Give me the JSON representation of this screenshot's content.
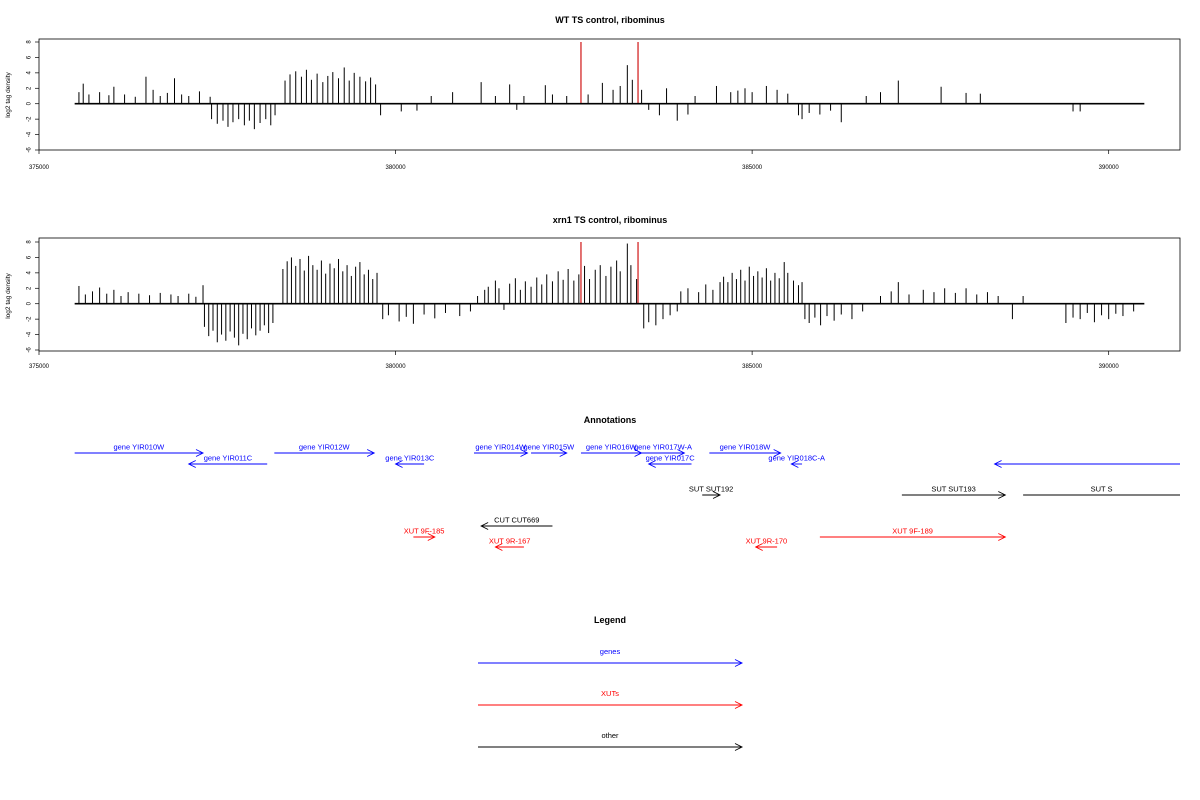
{
  "colors": {
    "gene": "#0000ff",
    "xut": "#ff0000",
    "other": "#000000",
    "marker": "#cc0000",
    "axis": "#000000"
  },
  "chart_data": [
    {
      "type": "bar",
      "title": "WT TS control, ribominus",
      "ylabel": "log2 tag density",
      "xlim": [
        375000,
        391000
      ],
      "ylim": [
        -6,
        8
      ],
      "xticks": [
        375000,
        380000,
        385000,
        390000
      ],
      "yticks": [
        -6,
        -4,
        -2,
        0,
        2,
        4,
        6,
        8
      ],
      "baseline": [
        375500,
        390500
      ],
      "markers": [
        382600,
        383400
      ],
      "bars": [
        [
          375560,
          1.5
        ],
        [
          375620,
          2.6
        ],
        [
          375700,
          1.2
        ],
        [
          375850,
          1.5
        ],
        [
          375980,
          1.1
        ],
        [
          376050,
          2.2
        ],
        [
          376200,
          1.2
        ],
        [
          376350,
          0.9
        ],
        [
          376500,
          3.5
        ],
        [
          376600,
          1.8
        ],
        [
          376700,
          1.0
        ],
        [
          376800,
          1.4
        ],
        [
          376900,
          3.3
        ],
        [
          377000,
          1.2
        ],
        [
          377100,
          1.0
        ],
        [
          377250,
          1.6
        ],
        [
          377400,
          0.9
        ],
        [
          377420,
          -2.0
        ],
        [
          377500,
          -2.6
        ],
        [
          377580,
          -2.2
        ],
        [
          377650,
          -3.0
        ],
        [
          377720,
          -2.4
        ],
        [
          377800,
          -2.0
        ],
        [
          377880,
          -2.8
        ],
        [
          377950,
          -2.2
        ],
        [
          378020,
          -3.3
        ],
        [
          378100,
          -2.5
        ],
        [
          378180,
          -2.0
        ],
        [
          378250,
          -2.8
        ],
        [
          378310,
          -1.5
        ],
        [
          378450,
          3.0
        ],
        [
          378520,
          3.8
        ],
        [
          378600,
          4.2
        ],
        [
          378680,
          3.5
        ],
        [
          378750,
          4.4
        ],
        [
          378820,
          3.1
        ],
        [
          378900,
          3.9
        ],
        [
          378980,
          2.8
        ],
        [
          379050,
          3.6
        ],
        [
          379120,
          4.1
        ],
        [
          379200,
          3.3
        ],
        [
          379280,
          4.7
        ],
        [
          379350,
          3.0
        ],
        [
          379420,
          4.0
        ],
        [
          379500,
          3.5
        ],
        [
          379580,
          2.9
        ],
        [
          379650,
          3.4
        ],
        [
          379720,
          2.5
        ],
        [
          379790,
          -1.5
        ],
        [
          380080,
          -1.0
        ],
        [
          380300,
          -0.9
        ],
        [
          380500,
          1.0
        ],
        [
          380800,
          1.5
        ],
        [
          381200,
          2.8
        ],
        [
          381400,
          1.0
        ],
        [
          381600,
          2.5
        ],
        [
          381700,
          -0.8
        ],
        [
          381800,
          1.0
        ],
        [
          382100,
          2.4
        ],
        [
          382200,
          1.2
        ],
        [
          382400,
          1.0
        ],
        [
          382700,
          1.2
        ],
        [
          382900,
          2.7
        ],
        [
          383050,
          1.8
        ],
        [
          383150,
          2.3
        ],
        [
          383250,
          5.0
        ],
        [
          383320,
          3.1
        ],
        [
          383450,
          1.8
        ],
        [
          383550,
          -0.8
        ],
        [
          383700,
          -1.5
        ],
        [
          383800,
          2.0
        ],
        [
          383950,
          -2.2
        ],
        [
          384100,
          -1.4
        ],
        [
          384200,
          1.0
        ],
        [
          384500,
          2.3
        ],
        [
          384700,
          1.5
        ],
        [
          384800,
          1.7
        ],
        [
          384900,
          2.0
        ],
        [
          385000,
          1.5
        ],
        [
          385200,
          2.3
        ],
        [
          385350,
          1.8
        ],
        [
          385500,
          1.3
        ],
        [
          385650,
          -1.5
        ],
        [
          385700,
          -2.0
        ],
        [
          385800,
          -1.2
        ],
        [
          385950,
          -1.4
        ],
        [
          386100,
          -0.9
        ],
        [
          386250,
          -2.4
        ],
        [
          386600,
          1.0
        ],
        [
          386800,
          1.5
        ],
        [
          387050,
          3.0
        ],
        [
          387650,
          2.2
        ],
        [
          388000,
          1.4
        ],
        [
          388200,
          1.3
        ],
        [
          389500,
          -1.0
        ],
        [
          389600,
          -1.0
        ]
      ]
    },
    {
      "type": "bar",
      "title": "xrn1 TS control, ribominus",
      "ylabel": "log2 tag density",
      "xlim": [
        375000,
        391000
      ],
      "ylim": [
        -6,
        8
      ],
      "xticks": [
        375000,
        380000,
        385000,
        390000
      ],
      "yticks": [
        -6,
        -4,
        -2,
        0,
        2,
        4,
        6,
        8
      ],
      "baseline": [
        375500,
        390500
      ],
      "markers": [
        382600,
        383400
      ],
      "bars": [
        [
          375560,
          2.3
        ],
        [
          375650,
          1.2
        ],
        [
          375750,
          1.6
        ],
        [
          375850,
          2.1
        ],
        [
          375950,
          1.3
        ],
        [
          376050,
          1.8
        ],
        [
          376150,
          1.0
        ],
        [
          376250,
          1.5
        ],
        [
          376400,
          1.3
        ],
        [
          376550,
          1.1
        ],
        [
          376700,
          1.4
        ],
        [
          376850,
          1.2
        ],
        [
          376950,
          1.0
        ],
        [
          377100,
          1.3
        ],
        [
          377200,
          0.9
        ],
        [
          377300,
          2.4
        ],
        [
          377320,
          -3.0
        ],
        [
          377380,
          -4.2
        ],
        [
          377440,
          -3.5
        ],
        [
          377500,
          -5.0
        ],
        [
          377560,
          -4.0
        ],
        [
          377620,
          -4.8
        ],
        [
          377680,
          -3.6
        ],
        [
          377740,
          -4.4
        ],
        [
          377800,
          -5.4
        ],
        [
          377860,
          -3.9
        ],
        [
          377920,
          -4.6
        ],
        [
          377980,
          -3.2
        ],
        [
          378040,
          -4.1
        ],
        [
          378100,
          -3.5
        ],
        [
          378160,
          -2.8
        ],
        [
          378220,
          -3.8
        ],
        [
          378280,
          -2.5
        ],
        [
          378420,
          4.5
        ],
        [
          378480,
          5.5
        ],
        [
          378540,
          6.0
        ],
        [
          378600,
          4.9
        ],
        [
          378660,
          5.8
        ],
        [
          378720,
          4.3
        ],
        [
          378780,
          6.2
        ],
        [
          378840,
          5.0
        ],
        [
          378900,
          4.4
        ],
        [
          378960,
          5.6
        ],
        [
          379020,
          3.9
        ],
        [
          379080,
          5.2
        ],
        [
          379140,
          4.6
        ],
        [
          379200,
          5.8
        ],
        [
          379260,
          4.2
        ],
        [
          379320,
          5.0
        ],
        [
          379380,
          3.6
        ],
        [
          379440,
          4.8
        ],
        [
          379500,
          5.4
        ],
        [
          379560,
          3.8
        ],
        [
          379620,
          4.4
        ],
        [
          379680,
          3.2
        ],
        [
          379740,
          4.0
        ],
        [
          379820,
          -2.0
        ],
        [
          379900,
          -1.5
        ],
        [
          380050,
          -2.3
        ],
        [
          380150,
          -1.7
        ],
        [
          380250,
          -2.6
        ],
        [
          380400,
          -1.4
        ],
        [
          380550,
          -1.9
        ],
        [
          380700,
          -1.2
        ],
        [
          380900,
          -1.6
        ],
        [
          381050,
          -1.0
        ],
        [
          381150,
          1.0
        ],
        [
          381250,
          1.8
        ],
        [
          381300,
          2.2
        ],
        [
          381400,
          3.0
        ],
        [
          381450,
          2.0
        ],
        [
          381520,
          -0.8
        ],
        [
          381600,
          2.6
        ],
        [
          381680,
          3.3
        ],
        [
          381750,
          1.8
        ],
        [
          381820,
          2.9
        ],
        [
          381900,
          2.2
        ],
        [
          381980,
          3.4
        ],
        [
          382050,
          2.5
        ],
        [
          382120,
          3.8
        ],
        [
          382200,
          2.9
        ],
        [
          382280,
          4.2
        ],
        [
          382350,
          3.1
        ],
        [
          382420,
          4.5
        ],
        [
          382500,
          3.0
        ],
        [
          382570,
          3.8
        ],
        [
          382650,
          4.9
        ],
        [
          382720,
          3.2
        ],
        [
          382800,
          4.4
        ],
        [
          382870,
          5.0
        ],
        [
          382950,
          3.6
        ],
        [
          383020,
          4.8
        ],
        [
          383100,
          5.6
        ],
        [
          383150,
          4.2
        ],
        [
          383250,
          7.8
        ],
        [
          383300,
          5.0
        ],
        [
          383380,
          3.2
        ],
        [
          383480,
          -3.2
        ],
        [
          383550,
          -2.4
        ],
        [
          383650,
          -2.8
        ],
        [
          383750,
          -2.0
        ],
        [
          383850,
          -1.5
        ],
        [
          383950,
          -1.0
        ],
        [
          384000,
          1.6
        ],
        [
          384100,
          2.0
        ],
        [
          384250,
          1.5
        ],
        [
          384350,
          2.5
        ],
        [
          384450,
          1.8
        ],
        [
          384550,
          2.8
        ],
        [
          384600,
          3.5
        ],
        [
          384660,
          2.8
        ],
        [
          384720,
          4.0
        ],
        [
          384780,
          3.2
        ],
        [
          384840,
          4.4
        ],
        [
          384900,
          3.0
        ],
        [
          384960,
          4.8
        ],
        [
          385020,
          3.6
        ],
        [
          385080,
          4.2
        ],
        [
          385140,
          3.4
        ],
        [
          385200,
          4.6
        ],
        [
          385260,
          3.0
        ],
        [
          385320,
          4.0
        ],
        [
          385380,
          3.3
        ],
        [
          385450,
          5.4
        ],
        [
          385500,
          4.0
        ],
        [
          385580,
          3.0
        ],
        [
          385650,
          2.4
        ],
        [
          385700,
          2.8
        ],
        [
          385740,
          -2.0
        ],
        [
          385800,
          -2.5
        ],
        [
          385880,
          -1.8
        ],
        [
          385960,
          -2.8
        ],
        [
          386050,
          -1.6
        ],
        [
          386150,
          -2.2
        ],
        [
          386250,
          -1.4
        ],
        [
          386400,
          -2.0
        ],
        [
          386550,
          -1.0
        ],
        [
          386800,
          1.0
        ],
        [
          386950,
          1.6
        ],
        [
          387050,
          2.8
        ],
        [
          387200,
          1.2
        ],
        [
          387400,
          1.8
        ],
        [
          387550,
          1.5
        ],
        [
          387700,
          2.0
        ],
        [
          387850,
          1.4
        ],
        [
          388000,
          2.0
        ],
        [
          388150,
          1.2
        ],
        [
          388300,
          1.5
        ],
        [
          388450,
          1.0
        ],
        [
          388650,
          -2.0
        ],
        [
          388800,
          1.0
        ],
        [
          389400,
          -2.5
        ],
        [
          389500,
          -1.8
        ],
        [
          389600,
          -2.0
        ],
        [
          389700,
          -1.2
        ],
        [
          389800,
          -2.4
        ],
        [
          389900,
          -1.5
        ],
        [
          390000,
          -2.0
        ],
        [
          390100,
          -1.3
        ],
        [
          390200,
          -1.6
        ],
        [
          390350,
          -1.0
        ]
      ]
    }
  ],
  "annotations": {
    "title": "Annotations",
    "items": [
      {
        "label": "gene YIR010W",
        "kind": "gene",
        "start": 375500,
        "end": 377300,
        "dir": "right",
        "row": 0
      },
      {
        "label": "gene YIR011C",
        "kind": "gene",
        "start": 377100,
        "end": 378200,
        "dir": "left",
        "row": 1
      },
      {
        "label": "gene YIR012W",
        "kind": "gene",
        "start": 378300,
        "end": 379700,
        "dir": "right",
        "row": 0
      },
      {
        "label": "gene YIR013C",
        "kind": "gene",
        "start": 380000,
        "end": 380400,
        "dir": "left",
        "row": 1
      },
      {
        "label": "gene YIR014W",
        "kind": "gene",
        "start": 381100,
        "end": 381850,
        "dir": "right",
        "row": 0
      },
      {
        "label": "gene YIR015W",
        "kind": "gene",
        "start": 381900,
        "end": 382400,
        "dir": "right",
        "row": 0
      },
      {
        "label": "gene YIR016W",
        "kind": "gene",
        "start": 382600,
        "end": 383450,
        "dir": "right",
        "row": 0
      },
      {
        "label": "gene YIR017W-A",
        "kind": "gene",
        "start": 383450,
        "end": 384050,
        "dir": "right",
        "row": 0
      },
      {
        "label": "gene YIR017C",
        "kind": "gene",
        "start": 383550,
        "end": 384150,
        "dir": "left",
        "row": 1
      },
      {
        "label": "gene YIR018W",
        "kind": "gene",
        "start": 384400,
        "end": 385400,
        "dir": "right",
        "row": 0
      },
      {
        "label": "gene YIR018C-A",
        "kind": "gene",
        "start": 385550,
        "end": 385700,
        "dir": "left",
        "row": 1
      },
      {
        "label": "",
        "kind": "gene",
        "start": 388400,
        "end": 391000,
        "dir": "left",
        "row": 1
      },
      {
        "label": "SUT SUT192",
        "kind": "other",
        "start": 384300,
        "end": 384550,
        "dir": "right",
        "row": 2
      },
      {
        "label": "SUT SUT193",
        "kind": "other",
        "start": 387100,
        "end": 388550,
        "dir": "right",
        "row": 2
      },
      {
        "label": "SUT S",
        "kind": "other",
        "start": 388800,
        "end": 391000,
        "dir": "none",
        "row": 2
      },
      {
        "label": "CUT CUT669",
        "kind": "other",
        "start": 381200,
        "end": 382200,
        "dir": "left",
        "row": 3
      },
      {
        "label": "XUT 9F-185",
        "kind": "xut",
        "start": 380250,
        "end": 380550,
        "dir": "right",
        "row": 4
      },
      {
        "label": "XUT 9R-167",
        "kind": "xut",
        "start": 381400,
        "end": 381800,
        "dir": "left",
        "row": 5
      },
      {
        "label": "XUT 9F-189",
        "kind": "xut",
        "start": 385950,
        "end": 388550,
        "dir": "right",
        "row": 4
      },
      {
        "label": "XUT 9R-170",
        "kind": "xut",
        "start": 385050,
        "end": 385350,
        "dir": "left",
        "row": 5
      }
    ]
  },
  "legend": {
    "title": "Legend",
    "items": [
      {
        "label": "genes",
        "kind": "gene"
      },
      {
        "label": "XUTs",
        "kind": "xut"
      },
      {
        "label": "other",
        "kind": "other"
      }
    ]
  }
}
